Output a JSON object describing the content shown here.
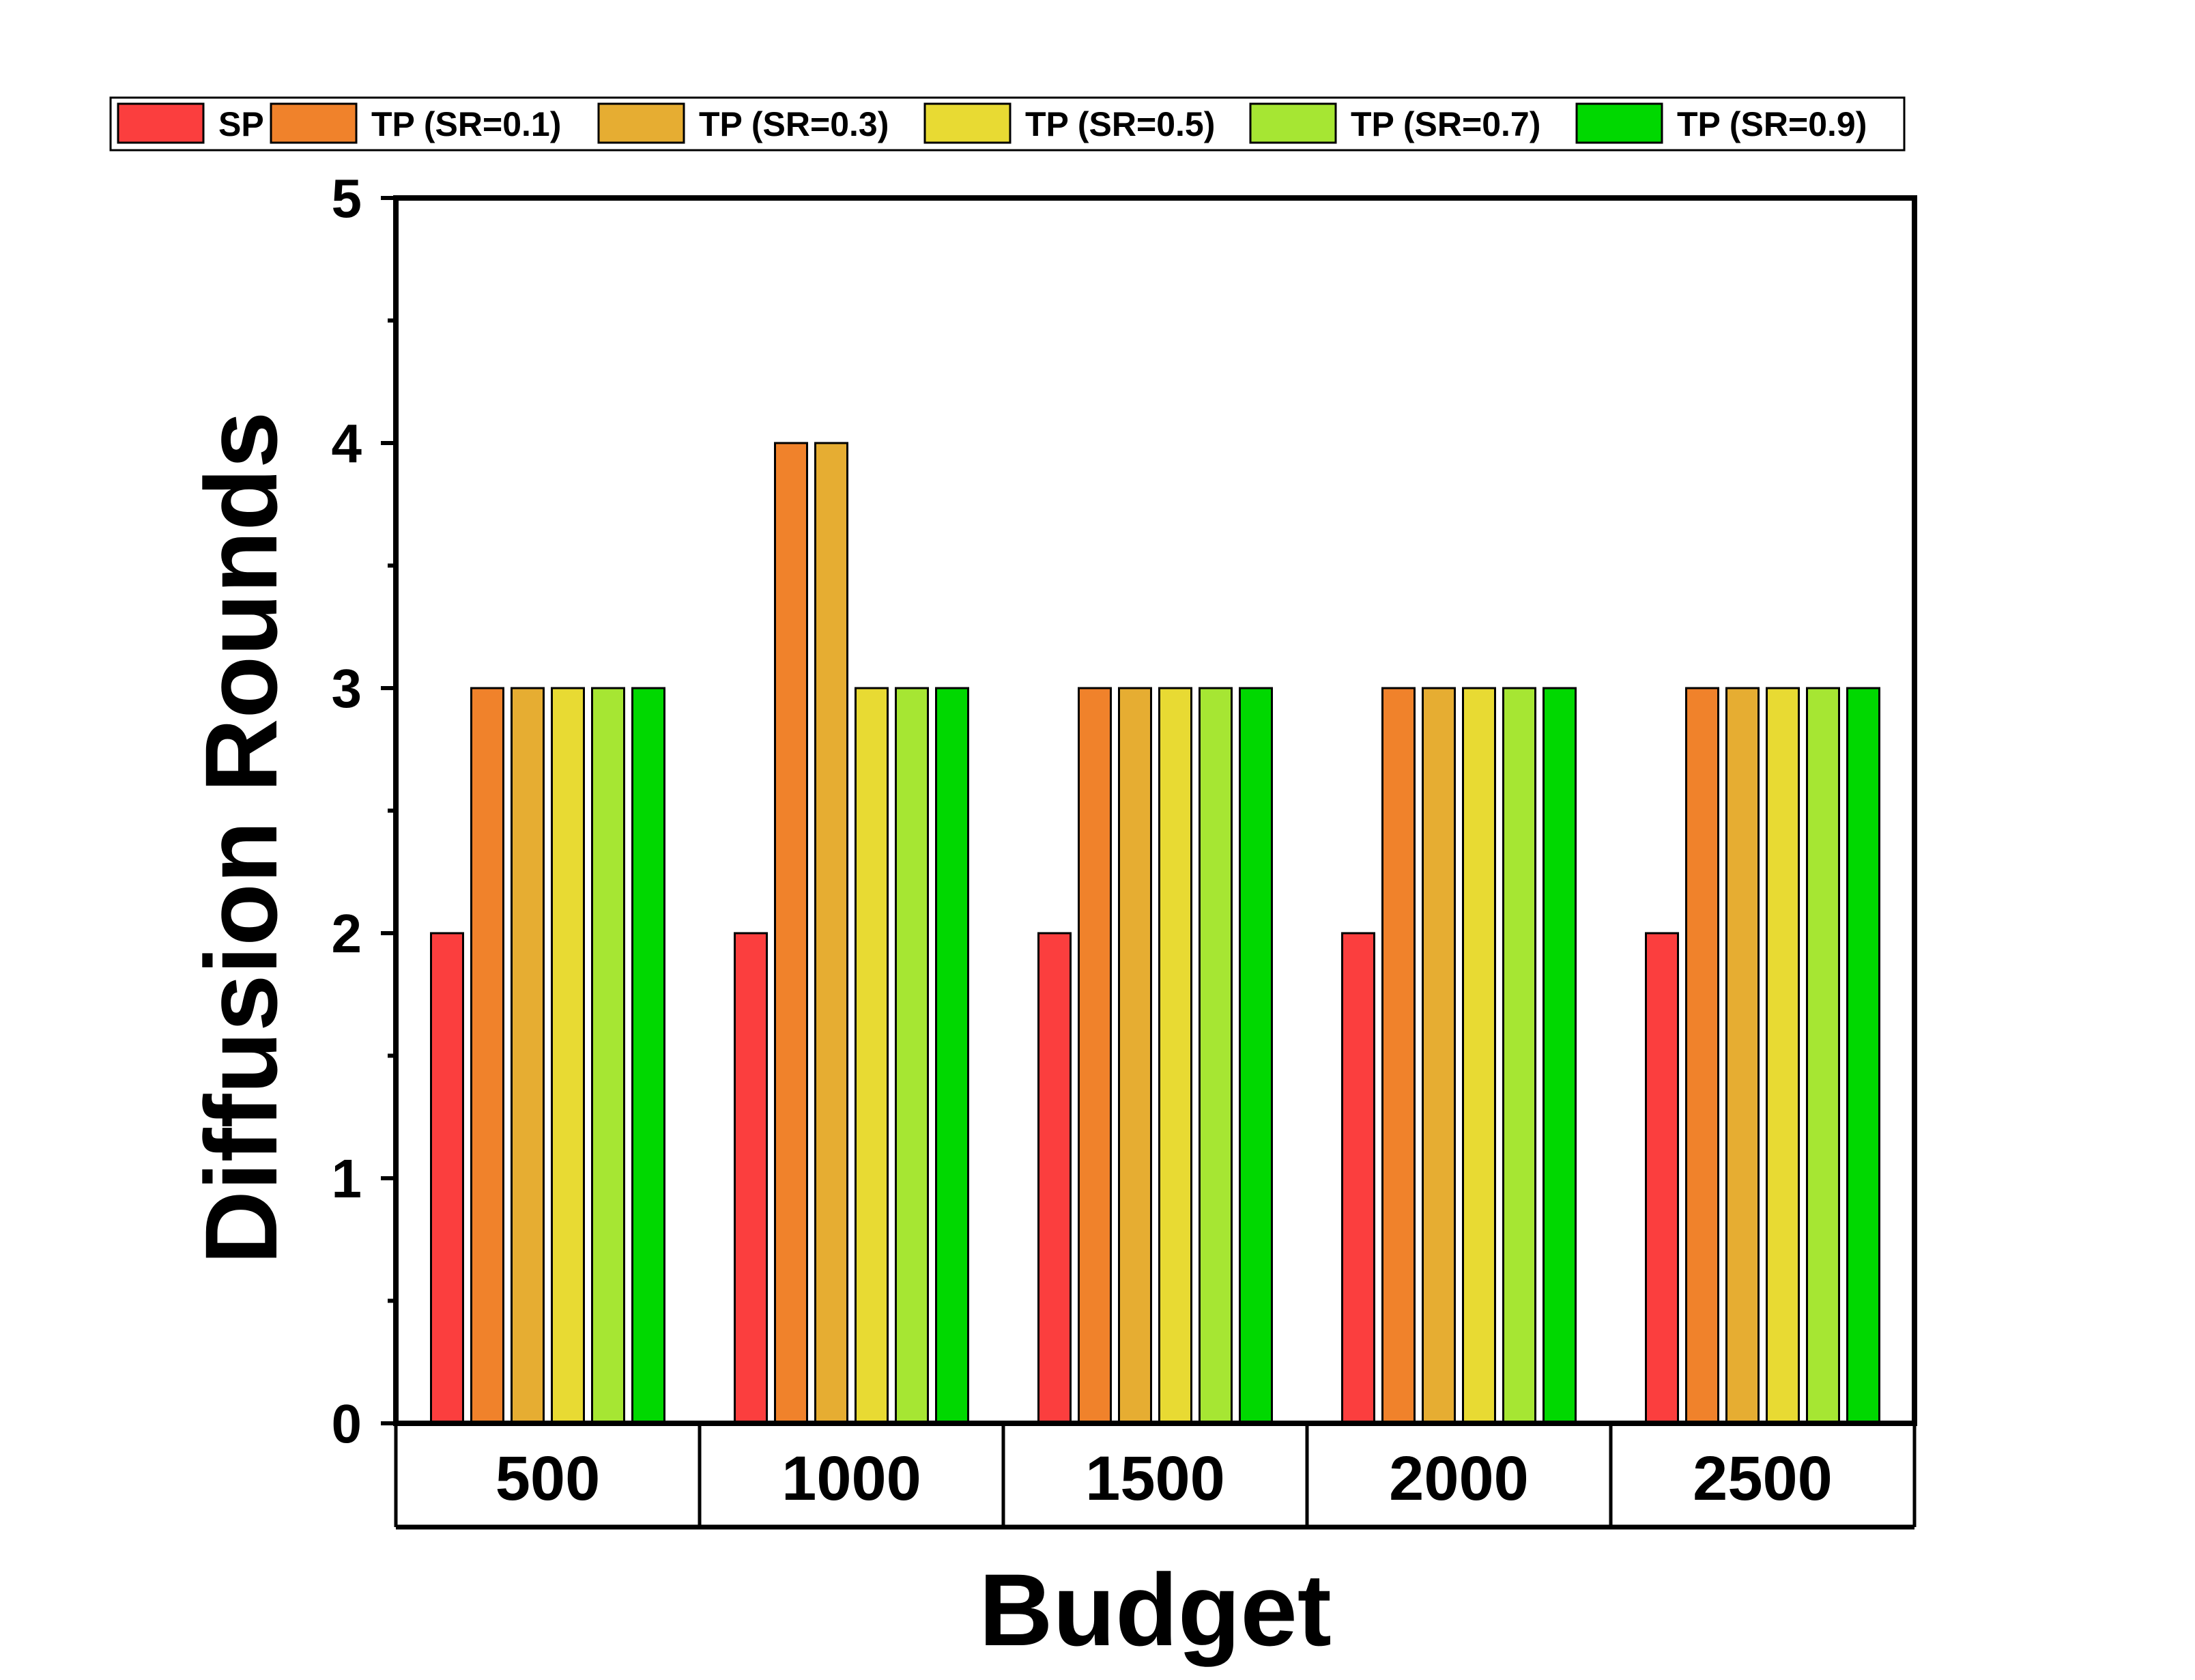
{
  "chart_data": {
    "type": "bar",
    "title": "",
    "xlabel": "Budget",
    "ylabel": "Diffusion Rounds",
    "ylim": [
      0,
      5
    ],
    "yticks": [
      0,
      1,
      2,
      3,
      4,
      5
    ],
    "grid": false,
    "legend_position": "top",
    "categories": [
      "500",
      "1000",
      "1500",
      "2000",
      "2500"
    ],
    "series": [
      {
        "name": "SP",
        "color": "#fb3e3e",
        "values": [
          2,
          2,
          2,
          2,
          2
        ]
      },
      {
        "name": "TP (SR=0.1)",
        "color": "#f0822b",
        "values": [
          3,
          4,
          3,
          3,
          3
        ]
      },
      {
        "name": "TP (SR=0.3)",
        "color": "#e6ad32",
        "values": [
          3,
          4,
          3,
          3,
          3
        ]
      },
      {
        "name": "TP (SR=0.5)",
        "color": "#e8da33",
        "values": [
          3,
          3,
          3,
          3,
          3
        ]
      },
      {
        "name": "TP (SR=0.7)",
        "color": "#a6e633",
        "values": [
          3,
          3,
          3,
          3,
          3
        ]
      },
      {
        "name": "TP (SR=0.9)",
        "color": "#00d800",
        "values": [
          3,
          3,
          3,
          3,
          3
        ]
      }
    ]
  }
}
